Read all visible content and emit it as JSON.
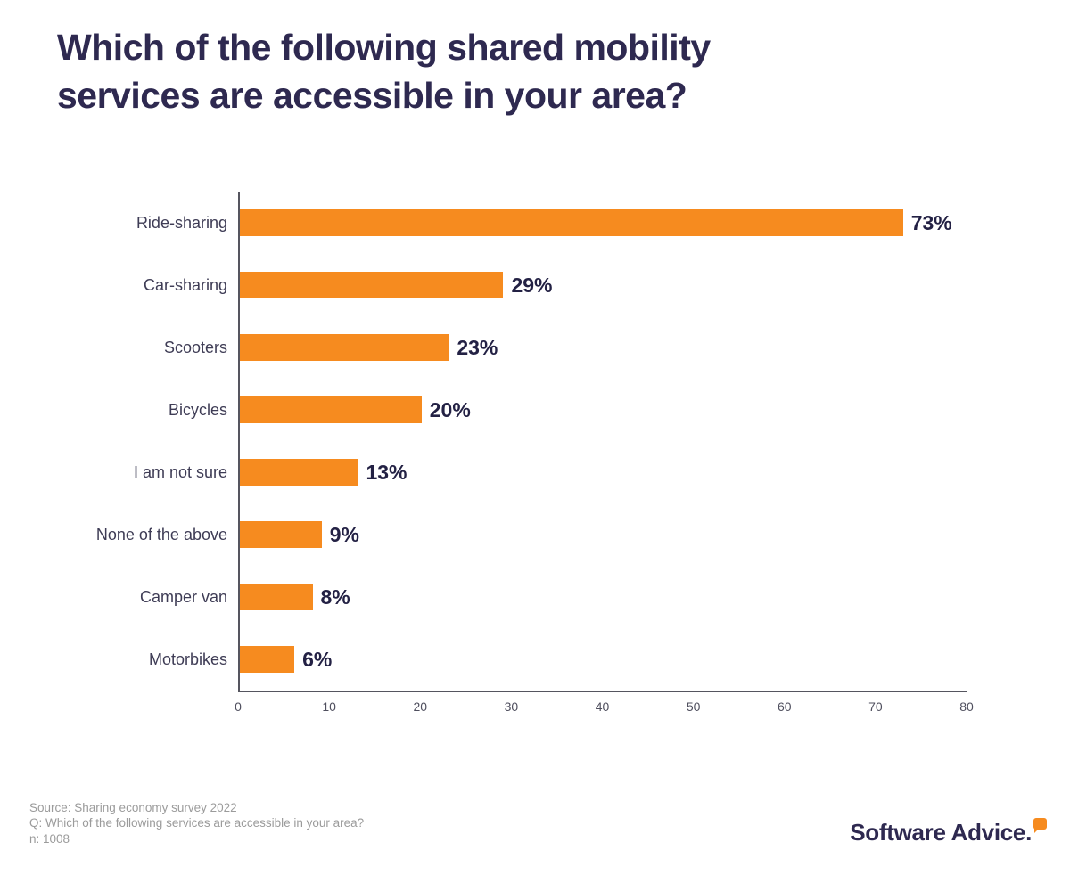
{
  "page": {
    "title_line1": "Which of the following shared mobility",
    "title_line2": "services are accessible in your area?"
  },
  "chart_data": {
    "type": "bar",
    "orientation": "horizontal",
    "title": "Which of the following shared mobility services are accessible in your area?",
    "categories": [
      "Ride-sharing",
      "Car-sharing",
      "Scooters",
      "Bicycles",
      "I am not sure",
      "None of the above",
      "Camper van",
      "Motorbikes"
    ],
    "values": [
      73,
      29,
      23,
      20,
      13,
      9,
      8,
      6
    ],
    "value_labels": [
      "73%",
      "29%",
      "23%",
      "20%",
      "13%",
      "9%",
      "8%",
      "6%"
    ],
    "xlabel": "",
    "ylabel": "",
    "xlim": [
      0,
      80
    ],
    "x_ticks": [
      0,
      10,
      20,
      30,
      40,
      50,
      60,
      70,
      80
    ],
    "grid": false,
    "legend": false,
    "bar_color": "#f68b1f",
    "value_label_color": "#232144",
    "axis_color": "#55555f"
  },
  "footer": {
    "source": "Source: Sharing economy survey 2022",
    "question": "Q: Which of the following services are accessible in your area?",
    "sample": "n: 1008"
  },
  "logo": {
    "text": "Software Advice",
    "period": ".",
    "accent_color": "#f68b1f",
    "text_color": "#2e2950"
  }
}
